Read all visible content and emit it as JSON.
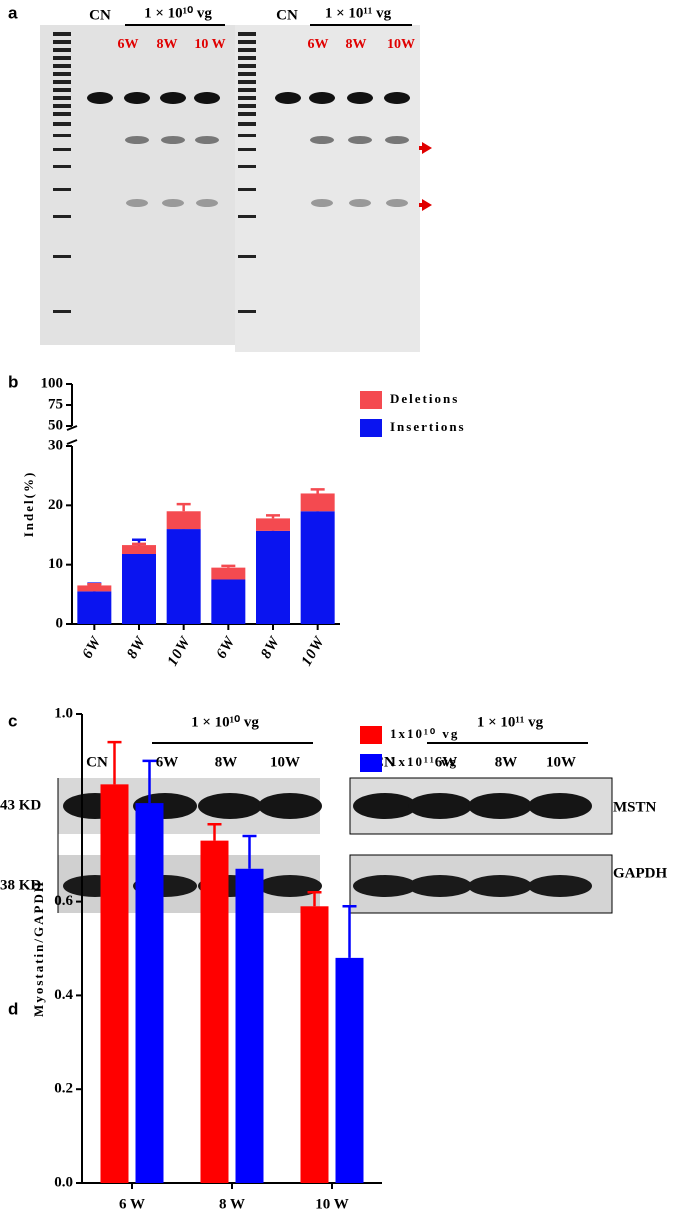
{
  "panel_labels": [
    "a",
    "b",
    "c",
    "d"
  ],
  "panel_a": {
    "groups": [
      {
        "control": "CN",
        "dose": "1 × 10¹⁰ vg",
        "lanes": [
          "6W",
          "8W",
          "10 W"
        ]
      },
      {
        "control": "CN",
        "dose": "1 × 10¹¹ vg",
        "lanes": [
          "6W",
          "8W",
          "10W"
        ]
      }
    ]
  },
  "panel_c": {
    "groups": [
      {
        "dose": "1 × 10¹⁰ vg",
        "lanes": [
          "CN",
          "6W",
          "8W",
          "10W"
        ]
      },
      {
        "dose": "1 × 10¹¹ vg",
        "lanes": [
          "CN",
          "6W",
          "8W",
          "10W"
        ]
      }
    ],
    "sizes": [
      "43 KD",
      "38 KD"
    ],
    "proteins": [
      "MSTN",
      "GAPDH"
    ]
  },
  "chart_data": [
    {
      "type": "bar",
      "stacked": true,
      "ylabel": "Indel(%)",
      "categories": [
        "6W",
        "8W",
        "10W",
        "6W",
        "8W",
        "10W"
      ],
      "series": [
        {
          "name": "Deletions",
          "color": "#f44a50",
          "values": [
            1.0,
            1.5,
            3.0,
            2.0,
            2.1,
            3.0
          ],
          "errors": [
            0.2,
            0.2,
            1.2,
            0.3,
            0.5,
            0.7
          ]
        },
        {
          "name": "Insertions",
          "color": "#0a14f0",
          "values": [
            5.5,
            11.8,
            16,
            7.5,
            15.7,
            19
          ],
          "errors": [
            1.3,
            2.4,
            2.6,
            0.5,
            1.6,
            2.5
          ]
        }
      ],
      "ylim": [
        0,
        30
      ],
      "yticks": [
        0,
        10,
        20,
        30
      ],
      "ylim_upper": [
        50,
        100
      ],
      "yticks_upper": [
        50,
        75,
        100
      ]
    },
    {
      "type": "bar",
      "ylabel": "Myostatin/GAPDH",
      "categories": [
        "6 W",
        "8 W",
        "10 W"
      ],
      "series": [
        {
          "name": "1x10¹⁰ vg",
          "color": "#ff0000",
          "values": [
            0.85,
            0.73,
            0.59
          ],
          "errors": [
            0.09,
            0.035,
            0.03
          ]
        },
        {
          "name": "1x10¹¹ vg",
          "color": "#0000ff",
          "values": [
            0.81,
            0.67,
            0.48
          ],
          "errors": [
            0.09,
            0.07,
            0.11
          ]
        }
      ],
      "ylim": [
        0,
        1
      ],
      "yticks": [
        {
          "value": 0,
          "label": "0.0"
        },
        0.2,
        0.4,
        0.6,
        {
          "value": 1,
          "label": "1.0"
        }
      ]
    }
  ]
}
